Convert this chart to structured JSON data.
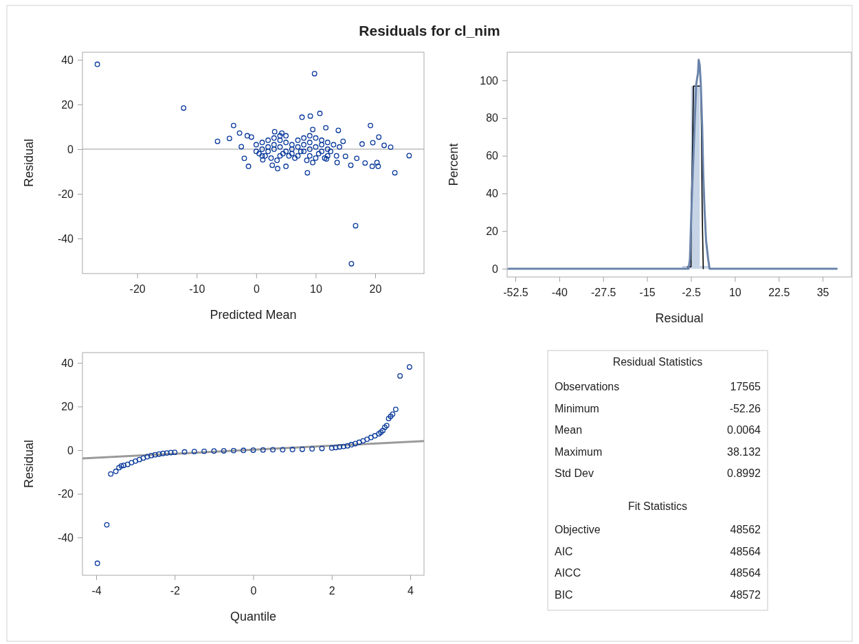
{
  "chart_data": [
    {
      "type": "scatter",
      "title": "Residuals for cl_nim",
      "xlabel": "Predicted Mean",
      "ylabel": "Residual",
      "color": "#0b3b9c",
      "marker": "circle",
      "xlim": [
        -29.2,
        28.2
      ],
      "ylim": [
        -55.7,
        43.4
      ],
      "xticks": [
        -20,
        -10,
        0,
        10,
        20
      ],
      "yticks": [
        -40,
        -20,
        0,
        20,
        40
      ],
      "ref_lines": [
        {
          "axis": "y",
          "value": 0,
          "color": "#9a9a9a"
        }
      ],
      "x": [
        -26.7,
        -12.2,
        -6.5,
        -4.5,
        -3.8,
        -2.8,
        -2.5,
        -2,
        -1.3,
        9.8,
        7.7,
        9.1,
        10.7,
        8.6,
        16.7,
        16,
        19.2,
        23.3,
        25.7,
        18.3,
        19.5,
        20.5,
        20.3,
        16.9,
        15.9,
        13.6,
        13.8,
        11.7,
        9.5,
        3.6,
        5,
        2.7,
        1.1,
        22.6,
        21.5,
        20.6,
        19.6,
        17.8,
        14.6,
        -1.5,
        -0.8,
        3.1,
        4.3,
        11.8,
        15,
        0,
        0.5,
        1,
        1.5,
        2,
        2.5,
        3,
        3.5,
        4,
        4.5,
        5,
        5.5,
        6,
        6.5,
        7,
        7.5,
        8,
        8.5,
        9,
        9.5,
        10,
        10.5,
        11,
        11.5,
        12,
        12.5,
        13,
        13.5,
        14,
        0,
        1,
        2,
        3,
        4,
        5,
        6,
        7,
        8,
        9,
        10,
        11,
        12,
        3,
        4,
        6,
        7,
        8,
        9,
        10,
        11,
        5,
        2,
        12,
        1,
        4,
        9
      ],
      "values": [
        38,
        18.4,
        3.5,
        4.8,
        10.6,
        7.2,
        1.1,
        -4.1,
        -7.7,
        33.8,
        14.3,
        14.8,
        16,
        -10.6,
        -34.3,
        -51.3,
        10.6,
        -10.6,
        -2.9,
        -6.2,
        -7.7,
        -7.7,
        -6,
        -4.1,
        -7.2,
        -6,
        8.4,
        9.6,
        8.8,
        -8.7,
        -7.7,
        -7.2,
        -4.8,
        0.9,
        1.7,
        5.4,
        2.9,
        2.3,
        3.5,
        6,
        5.4,
        7.8,
        7.2,
        -4.4,
        -3.2,
        2,
        -2,
        3,
        -3,
        1,
        -4,
        5,
        -5,
        4,
        -2,
        6,
        -3,
        2,
        -4,
        4,
        -1,
        5,
        -5,
        3,
        -6,
        5,
        -2,
        4,
        -4,
        3,
        -1,
        2,
        -3,
        1,
        -1,
        0,
        -1,
        0,
        1,
        -1,
        0,
        1,
        -1,
        0,
        1,
        -1,
        0,
        2,
        -3,
        -2,
        -3,
        2,
        -3,
        -4,
        2,
        3,
        4,
        -3,
        -3,
        6,
        6
      ]
    },
    {
      "type": "histogram",
      "xlabel": "Residual",
      "ylabel": "Percent",
      "color": "#c6d4e6",
      "xlim": [
        -54.85,
        43.2
      ],
      "ylim": [
        -4.4,
        115
      ],
      "xticks": [
        -52.5,
        -40,
        -27.5,
        -15,
        -2.5,
        10,
        22.5,
        35
      ],
      "yticks": [
        0,
        20,
        40,
        60,
        80,
        100
      ],
      "bins": [
        -5,
        -2.5,
        0,
        2.5
      ],
      "values": [
        1.5,
        97,
        1.5
      ],
      "series": [
        {
          "type": "line",
          "color": "#000000",
          "x": [
            -3.5,
            -2.5,
            -2.4,
            -2.2,
            -2,
            -1.8,
            0.3,
            0.5,
            0.7,
            1
          ],
          "values": [
            1,
            1,
            35,
            50,
            70,
            97,
            97,
            72,
            30,
            0
          ]
        },
        {
          "type": "line",
          "color": "#6a83aa",
          "x": [
            -54.5,
            -3.2,
            -2.8,
            -2.6,
            -2.3,
            -2,
            -1.5,
            -1,
            -0.5,
            -0.3,
            0,
            0.3,
            0.7,
            1,
            1.4,
            1.8,
            2.4,
            2.8,
            39
          ],
          "values": [
            0,
            0,
            5,
            17,
            35,
            50,
            75,
            98,
            104,
            111,
            108,
            98,
            75,
            50,
            30,
            15,
            5,
            0,
            0
          ]
        }
      ]
    },
    {
      "type": "scatter",
      "xlabel": "Quantile",
      "ylabel": "Residual",
      "xlim": [
        -4.35,
        4.35
      ],
      "ylim": [
        -57.3,
        44.7
      ],
      "xticks": [
        -4,
        -2,
        0,
        2,
        4
      ],
      "yticks": [
        -40,
        -20,
        0,
        20,
        40
      ],
      "series": [
        {
          "type": "line",
          "color": "#9a9a9a",
          "x": [
            -4.35,
            4.35
          ],
          "values": [
            -3.8,
            4.2
          ]
        },
        {
          "type": "scatter",
          "marker": "circle",
          "color": "#0b3b9c",
          "x": [
            -3.97,
            -3.73,
            -3.63,
            -3.5,
            -3.42,
            -3.36,
            -3.3,
            -3.2,
            -3.1,
            -3,
            -2.9,
            -2.8,
            -2.7,
            -2.6,
            -2.5,
            -2.4,
            -2.3,
            -2.2,
            -2.1,
            -2,
            -1.75,
            -1.5,
            -1.25,
            -1,
            -0.75,
            -0.5,
            -0.25,
            0,
            0.25,
            0.5,
            0.75,
            1,
            1.25,
            1.5,
            1.75,
            2,
            2.1,
            2.2,
            2.3,
            2.4,
            2.5,
            2.6,
            2.7,
            2.8,
            2.9,
            3,
            3.1,
            3.2,
            3.25,
            3.3,
            3.35,
            3.4,
            3.45,
            3.5,
            3.55,
            3.63,
            3.74,
            3.98
          ],
          "values": [
            -51.8,
            -34.2,
            -10.9,
            -9.7,
            -8,
            -7.2,
            -7,
            -6.5,
            -5.7,
            -5,
            -4.3,
            -3.6,
            -3,
            -2.5,
            -2.1,
            -1.8,
            -1.5,
            -1.3,
            -1.1,
            -1,
            -0.8,
            -0.6,
            -0.5,
            -0.4,
            -0.3,
            -0.2,
            -0.1,
            0,
            0.1,
            0.2,
            0.2,
            0.3,
            0.4,
            0.6,
            0.8,
            1,
            1.2,
            1.5,
            1.7,
            2,
            2.5,
            3,
            3.6,
            4.3,
            5,
            5.8,
            6.6,
            7.5,
            8.2,
            9,
            10.5,
            11.3,
            14.5,
            15.5,
            16.5,
            18.7,
            34,
            38.1
          ]
        }
      ]
    },
    {
      "type": "other",
      "title": "Residual Statistics",
      "categories": [
        "Observations",
        "Minimum",
        "Mean",
        "Maximum",
        "Std Dev"
      ],
      "values": [
        17565,
        -52.26,
        0.0064,
        38.132,
        0.8992
      ],
      "data_labels": true
    },
    {
      "type": "other",
      "title": "Fit Statistics",
      "categories": [
        "Objective",
        "AIC",
        "AICC",
        "BIC"
      ],
      "values": [
        48562,
        48564,
        48564,
        48572
      ],
      "data_labels": true
    }
  ]
}
